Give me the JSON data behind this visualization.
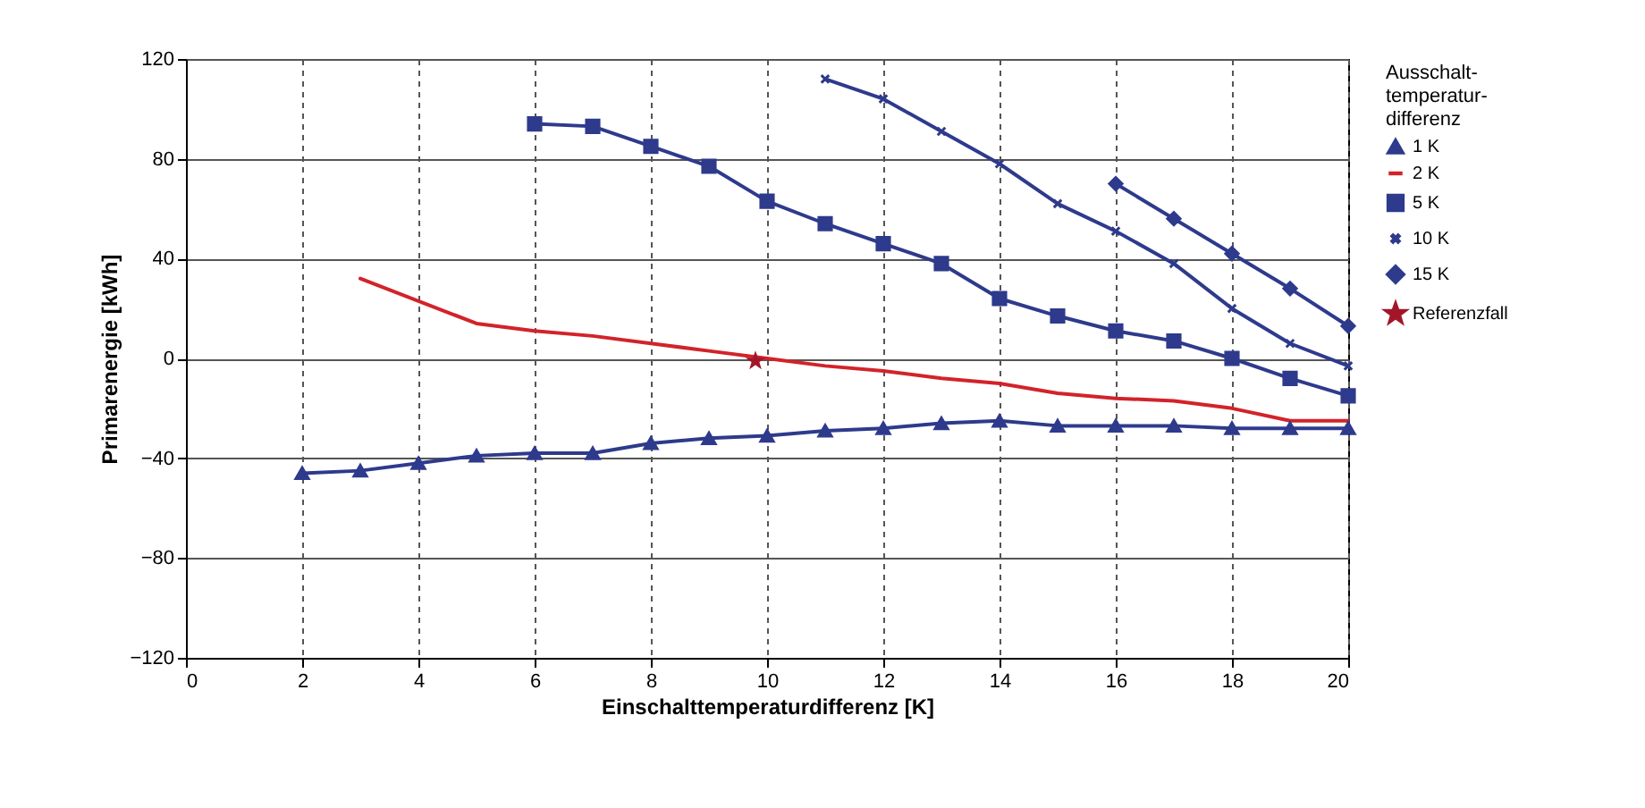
{
  "chart_data": {
    "type": "line",
    "xlabel": "Einschalttemperaturdifferenz [K]",
    "ylabel": "Primarenergie [kWh]",
    "legend_title": "Ausschalt-temperatur-differenz",
    "xlim": [
      0,
      20
    ],
    "xticks": [
      0,
      2,
      4,
      6,
      8,
      10,
      12,
      14,
      16,
      18,
      20
    ],
    "ylim": [
      -120,
      120
    ],
    "yticks": [
      -120,
      -80,
      -40,
      0,
      40,
      80,
      120
    ],
    "grid": true,
    "legend": "right",
    "series": [
      {
        "name": "1 K",
        "color": "#2e3a8c",
        "marker": "triangle",
        "x": [
          2,
          3,
          4,
          5,
          6,
          7,
          8,
          9,
          10,
          11,
          12,
          13,
          14,
          15,
          16,
          17,
          18,
          19,
          20
        ],
        "values": [
          -46,
          -45,
          -42,
          -39,
          -38,
          -38,
          -34,
          -32,
          -31,
          -29,
          -28,
          -26,
          -25,
          -27,
          -27,
          -27,
          -28,
          -28,
          -28
        ]
      },
      {
        "name": "2 K",
        "color": "#d2232a",
        "marker": "none",
        "x": [
          3,
          5,
          6,
          7,
          8,
          9,
          10,
          11,
          12,
          13,
          14,
          15,
          16,
          17,
          18,
          19,
          20
        ],
        "values": [
          32,
          14,
          11,
          9,
          6,
          3,
          0,
          -3,
          -5,
          -8,
          -10,
          -14,
          -16,
          -17,
          -20,
          -25,
          -25
        ]
      },
      {
        "name": "5 K",
        "color": "#2e3a8c",
        "marker": "square",
        "x": [
          6,
          7,
          8,
          9,
          10,
          11,
          12,
          13,
          14,
          15,
          16,
          17,
          18,
          19,
          20
        ],
        "values": [
          94,
          93,
          85,
          77,
          63,
          54,
          46,
          38,
          24,
          17,
          11,
          7,
          0,
          -8,
          -15
        ]
      },
      {
        "name": "10 K",
        "color": "#2e3a8c",
        "marker": "cross",
        "x": [
          11,
          12,
          13,
          14,
          15,
          16,
          17,
          18,
          19,
          20
        ],
        "values": [
          112,
          104,
          91,
          78,
          62,
          51,
          38,
          20,
          6,
          -3
        ]
      },
      {
        "name": "15 K",
        "color": "#2e3a8c",
        "marker": "diamond",
        "x": [
          16,
          17,
          18,
          19,
          20
        ],
        "values": [
          70,
          56,
          42,
          28,
          13
        ]
      },
      {
        "name": "Referenzfall",
        "type": "scatter",
        "color": "#a3162a",
        "marker": "star",
        "x": [
          9.8
        ],
        "values": [
          -1
        ]
      }
    ]
  }
}
